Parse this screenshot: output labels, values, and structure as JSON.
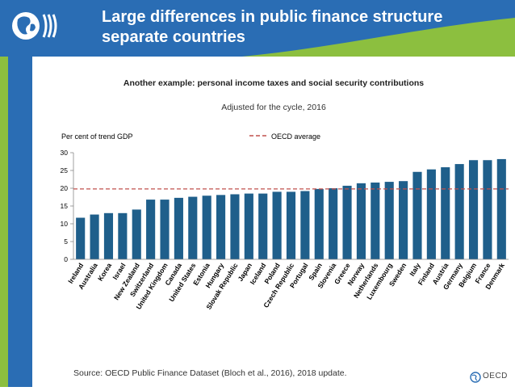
{
  "slide": {
    "title_line1": "Large differences in public finance structure",
    "title_line2": "separate countries",
    "footer_logo_text": "OECD"
  },
  "colors": {
    "header_blue": "#2a6db4",
    "header_green": "#8cbf3f",
    "bar": "#1f5f8b",
    "reference_line": "#c0504d"
  },
  "source_note": "Source: OECD Public Finance Dataset (Bloch et al., 2016), 2018 update.",
  "chart_data": {
    "type": "bar",
    "title": "Another example: personal income taxes and social security contributions",
    "subtitle": "Adjusted for the cycle, 2016",
    "ylabel": "Per cent of trend GDP",
    "xlabel": "",
    "ylim": [
      0,
      30
    ],
    "yticks": [
      0,
      5,
      10,
      15,
      20,
      25,
      30
    ],
    "grid": false,
    "legend": "top-center",
    "categories": [
      "Ireland",
      "Australia",
      "Korea",
      "Israel",
      "New Zealand",
      "Switzerland",
      "United Kingdom",
      "Canada",
      "United States",
      "Estonia",
      "Hungary",
      "Slovak Republic",
      "Japan",
      "Iceland",
      "Poland",
      "Czech Republic",
      "Portugal",
      "Spain",
      "Slovenia",
      "Greece",
      "Norway",
      "Netherlands",
      "Luxembourg",
      "Sweden",
      "Italy",
      "Finland",
      "Austria",
      "Germany",
      "Belgium",
      "France",
      "Denmark"
    ],
    "series": [
      {
        "name": "Per cent of trend GDP",
        "values": [
          11.7,
          12.6,
          13.0,
          13.0,
          14.0,
          16.8,
          16.8,
          17.3,
          17.6,
          17.9,
          18.1,
          18.3,
          18.5,
          18.5,
          19.0,
          19.0,
          19.2,
          19.8,
          20.0,
          20.7,
          21.4,
          21.6,
          21.8,
          22.0,
          24.6,
          25.3,
          25.9,
          26.8,
          27.9,
          27.9,
          28.2
        ]
      }
    ],
    "reference_lines": [
      {
        "name": "OECD average",
        "value": 19.8
      }
    ]
  }
}
